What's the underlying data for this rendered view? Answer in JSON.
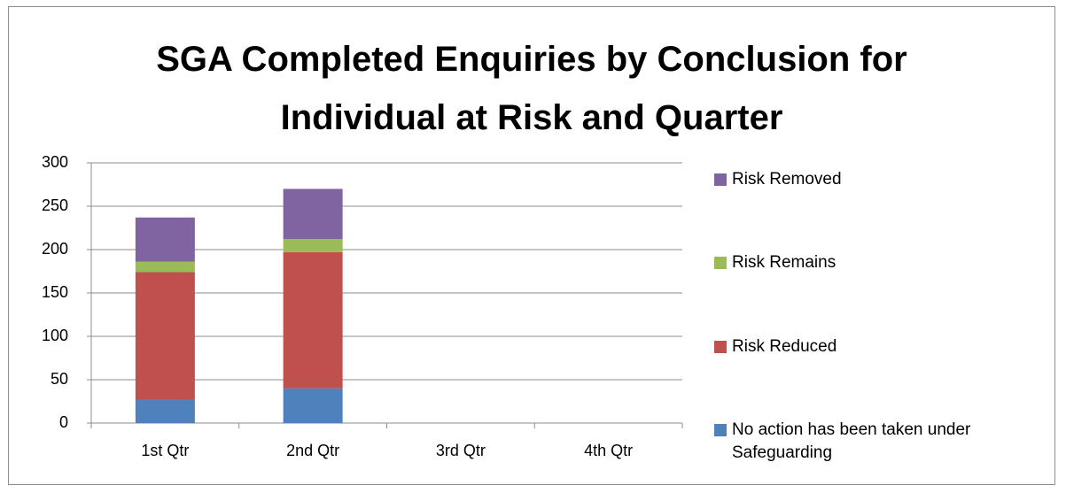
{
  "chart_data": {
    "type": "stacked-bar",
    "title": "SGA Completed Enquiries by Conclusion for Individual at Risk and Quarter",
    "categories": [
      "1st Qtr",
      "2nd Qtr",
      "3rd Qtr",
      "4th Qtr"
    ],
    "series": [
      {
        "name": "No action has been taken under Safeguarding",
        "color": "#4f81bd",
        "values": [
          27,
          40,
          null,
          null
        ]
      },
      {
        "name": "Risk Reduced",
        "color": "#c0504d",
        "values": [
          147,
          157,
          null,
          null
        ]
      },
      {
        "name": "Risk Remains",
        "color": "#9bbb59",
        "values": [
          12,
          15,
          null,
          null
        ]
      },
      {
        "name": "Risk Removed",
        "color": "#8064a2",
        "values": [
          51,
          58,
          null,
          null
        ]
      }
    ],
    "ylim": [
      0,
      300
    ],
    "yticks": [
      0,
      50,
      100,
      150,
      200,
      250,
      300
    ],
    "grid": true,
    "legend": "right"
  }
}
